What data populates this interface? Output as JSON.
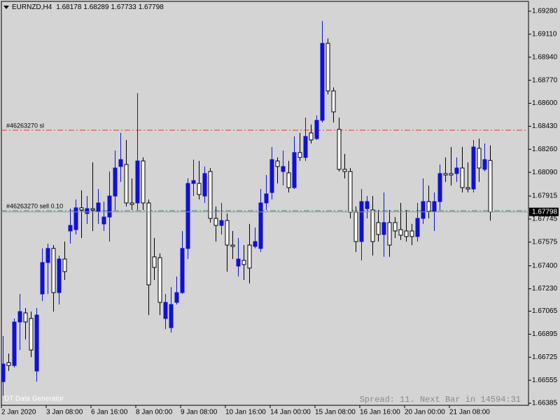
{
  "chart_data": {
    "type": "candlestick",
    "title": "EURNZD,H4",
    "bull_color": "#1010d8",
    "bear_color": "#ffffff",
    "ylim": [
      1.6637,
      1.69352
    ],
    "yticks": [
      {
        "value": 1.6928,
        "label": "1.69280"
      },
      {
        "value": 1.6911,
        "label": "1.69110"
      },
      {
        "value": 1.6894,
        "label": "1.68940"
      },
      {
        "value": 1.6877,
        "label": "1.68770"
      },
      {
        "value": 1.686,
        "label": "1.68600"
      },
      {
        "value": 1.6843,
        "label": "1.68430"
      },
      {
        "value": 1.6826,
        "label": "1.68260"
      },
      {
        "value": 1.6809,
        "label": "1.68090"
      },
      1.67915,
      1.67745,
      1.67575,
      {
        "value": 1.674,
        "label": "1.67400"
      },
      {
        "value": 1.6723,
        "label": "1.67230"
      },
      1.67065,
      1.66895,
      1.66725,
      1.66555,
      1.66385
    ],
    "categories": [
      "2 Jan 2020",
      null,
      null,
      null,
      null,
      null,
      null,
      null,
      "3 Jan 08:00",
      null,
      null,
      null,
      null,
      null,
      null,
      null,
      "6 Jan 16:00",
      null,
      null,
      null,
      null,
      null,
      null,
      null,
      "8 Jan 00:00",
      null,
      null,
      null,
      null,
      null,
      null,
      null,
      "9 Jan 08:00",
      null,
      null,
      null,
      null,
      null,
      null,
      null,
      "10 Jan 16:00",
      null,
      null,
      null,
      null,
      null,
      null,
      null,
      "14 Jan 00:00",
      null,
      null,
      null,
      null,
      null,
      null,
      null,
      "15 Jan 08:00",
      null,
      null,
      null,
      null,
      null,
      null,
      null,
      "16 Jan 16:00",
      null,
      null,
      null,
      null,
      null,
      null,
      null,
      "20 Jan 00:00",
      null,
      null,
      null,
      null,
      null,
      null,
      null,
      "21 Jan 08:00",
      null,
      null,
      null,
      null,
      null,
      null,
      null
    ],
    "open": [
      1.66545,
      1.66685,
      1.66664,
      1.66985,
      1.67052,
      1.67011,
      1.66623,
      1.67192,
      1.67424,
      1.67528,
      1.67202,
      1.6745,
      1.67657,
      1.67667,
      1.67828,
      1.67786,
      1.67822,
      1.67802,
      1.67709,
      1.6776,
      1.67915,
      1.68133,
      1.68148,
      1.67864,
      1.67864,
      1.68174,
      1.67864,
      1.67466,
      1.6746,
      1.67011,
      1.66943,
      1.6713,
      1.67202,
      1.67528,
      1.68008,
      1.68008,
      1.67915,
      1.68096,
      1.6775,
      1.67698,
      1.67734,
      1.67553,
      1.67398,
      1.6744,
      1.67553,
      1.67543,
      1.67528,
      1.67864,
      1.67941,
      1.68174,
      1.68096,
      1.68086,
      1.67977,
      1.68236,
      1.682,
      1.68381,
      1.68339,
      1.68474,
      1.69042,
      1.68691,
      1.68407,
      1.68112,
      1.68096,
      1.67796,
      1.67579,
      1.67822,
      1.67812,
      1.67719,
      1.67631,
      1.67719,
      1.67719,
      1.67667,
      1.67657,
      1.67657,
      1.67616,
      1.6775,
      1.67874,
      1.67802,
      1.67874,
      1.68081,
      1.68081,
      1.68081,
      1.68122,
      1.67977,
      1.67967,
      1.68267,
      1.68112,
      1.68178
    ],
    "high": [
      1.66881,
      1.66752,
      1.67011,
      1.67192,
      1.67088,
      1.67062,
      1.67088,
      1.67528,
      1.67564,
      1.67553,
      1.67476,
      1.67579,
      1.67822,
      1.6789,
      1.67957,
      1.67915,
      1.68164,
      1.67967,
      1.67874,
      1.68096,
      1.68251,
      1.68381,
      1.68329,
      1.68045,
      1.68675,
      1.682,
      1.6789,
      1.67605,
      1.67491,
      1.67192,
      1.67243,
      1.67321,
      1.67657,
      1.68045,
      1.68184,
      1.68174,
      1.68133,
      1.68122,
      1.67838,
      1.67864,
      1.67786,
      1.67657,
      1.67605,
      1.67553,
      1.67709,
      1.67683,
      1.67967,
      1.6807,
      1.68277,
      1.682,
      1.68251,
      1.68174,
      1.68355,
      1.68381,
      1.68494,
      1.68443,
      1.6851,
      1.69208,
      1.69079,
      1.68717,
      1.68494,
      1.68226,
      1.68122,
      1.67838,
      1.67967,
      1.67915,
      1.67915,
      1.67812,
      1.67941,
      1.67812,
      1.6776,
      1.67864,
      1.67812,
      1.67709,
      1.67864,
      1.68045,
      1.67993,
      1.67941,
      1.68148,
      1.682,
      1.68277,
      1.682,
      1.68277,
      1.68164,
      1.68329,
      1.68339,
      1.68303,
      1.68289
    ],
    "low": [
      1.66442,
      1.66623,
      1.66649,
      1.66778,
      1.66856,
      1.66726,
      1.66545,
      1.6714,
      1.67192,
      1.67062,
      1.67114,
      1.67295,
      1.67564,
      1.67631,
      1.67605,
      1.67709,
      1.67657,
      1.67709,
      1.67657,
      1.67579,
      1.67812,
      1.68019,
      1.67838,
      1.67812,
      1.67812,
      1.67812,
      1.67036,
      1.67295,
      1.67036,
      1.66933,
      1.66907,
      1.67114,
      1.67192,
      1.6745,
      1.67915,
      1.6789,
      1.67864,
      1.67719,
      1.67579,
      1.67631,
      1.67357,
      1.6745,
      1.67321,
      1.67295,
      1.67269,
      1.67528,
      1.67502,
      1.67812,
      1.6789,
      1.68008,
      1.67993,
      1.67941,
      1.67967,
      1.68174,
      1.68174,
      1.68303,
      1.68329,
      1.68458,
      1.68665,
      1.68458,
      1.68096,
      1.68045,
      1.6775,
      1.67502,
      1.6744,
      1.6775,
      1.67476,
      1.67579,
      1.67466,
      1.67466,
      1.67605,
      1.6759,
      1.67579,
      1.67553,
      1.67579,
      1.67709,
      1.6775,
      1.67657,
      1.67812,
      1.68019,
      1.67993,
      1.68019,
      1.67941,
      1.67941,
      1.67941,
      1.68019,
      1.68096,
      1.67733
    ],
    "close": [
      1.66675,
      1.66664,
      1.66985,
      1.67062,
      1.66985,
      1.66778,
      1.67036,
      1.67424,
      1.67528,
      1.67202,
      1.6745,
      1.67357,
      1.67698,
      1.67828,
      1.67812,
      1.67822,
      1.67812,
      1.67864,
      1.6776,
      1.67915,
      1.68122,
      1.68184,
      1.67864,
      1.67853,
      1.68174,
      1.67864,
      1.67259,
      1.67388,
      1.6713,
      1.6713,
      1.67114,
      1.67202,
      1.67528,
      1.68008,
      1.68029,
      1.67926,
      1.68081,
      1.6775,
      1.67698,
      1.67734,
      1.67553,
      1.67543,
      1.6745,
      1.67409,
      1.67383,
      1.67579,
      1.67864,
      1.67931,
      1.68184,
      1.68133,
      1.68133,
      1.67977,
      1.68236,
      1.682,
      1.68355,
      1.68329,
      1.68474,
      1.69042,
      1.68691,
      1.68536,
      1.68112,
      1.68096,
      1.67796,
      1.67579,
      1.67874,
      1.67874,
      1.67579,
      1.67631,
      1.67719,
      1.67553,
      1.67657,
      1.67626,
      1.67616,
      1.67616,
      1.6775,
      1.67874,
      1.67802,
      1.67874,
      1.68081,
      1.6807,
      1.6807,
      1.68122,
      1.67977,
      1.67967,
      1.68277,
      1.68122,
      1.68184,
      1.67798
    ],
    "levels": [
      {
        "label": "#46263270 sl",
        "value": 1.68401,
        "color": "#e03a2a"
      },
      {
        "label": "#46263270 sell 0.10",
        "value": 1.67807,
        "color": "#3f7f6f"
      }
    ],
    "annotations": [
      "DT Data Generator",
      "Spread: 11. Next Bar in 14594:31"
    ]
  }
}
